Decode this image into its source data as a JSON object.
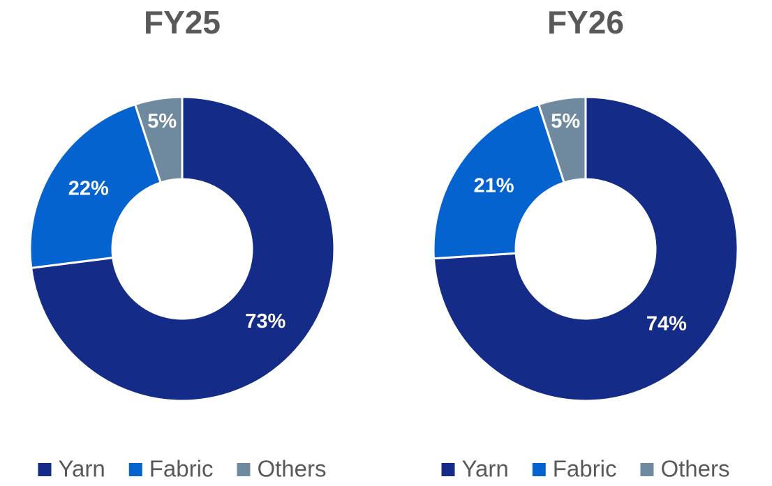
{
  "chart_data": [
    {
      "type": "pie",
      "title": "FY25",
      "categories": [
        "Yarn",
        "Fabric",
        "Others"
      ],
      "values": [
        73,
        22,
        5
      ],
      "value_labels": [
        "73%",
        "22%",
        "5%"
      ],
      "colors": [
        "#142c87",
        "#0563d0",
        "#6f8a9e"
      ],
      "legend": "bottom"
    },
    {
      "type": "pie",
      "title": "FY26",
      "categories": [
        "Yarn",
        "Fabric",
        "Others"
      ],
      "values": [
        74,
        21,
        5
      ],
      "value_labels": [
        "74%",
        "21%",
        "5%"
      ],
      "colors": [
        "#142c87",
        "#0563d0",
        "#6f8a9e"
      ],
      "legend": "bottom"
    }
  ]
}
